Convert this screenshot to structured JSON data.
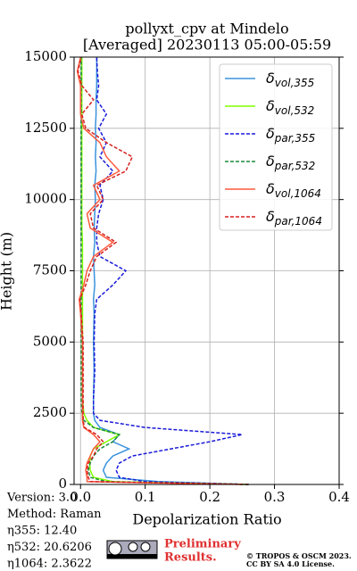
{
  "chart_data": {
    "type": "line",
    "title": [
      "pollyxt_cpv at Mindelo",
      "[Averaged] 20230113 05:00-05:59"
    ],
    "xlabel": "Depolarization Ratio",
    "ylabel": "Height (m)",
    "xlim": [
      -0.01,
      0.4
    ],
    "ylim": [
      0,
      15000
    ],
    "xticks": [
      {
        "value": 0,
        "label": "0.0"
      },
      0.1,
      0.2,
      0.3,
      0.4
    ],
    "yticks": [
      0,
      2500,
      5000,
      7500,
      10000,
      12500,
      15000
    ],
    "grid": true,
    "legend": "upper right",
    "y": [
      0,
      100,
      250,
      500,
      750,
      1000,
      1250,
      1500,
      1750,
      2000,
      2250,
      2500,
      3000,
      4000,
      5000,
      6000,
      6500,
      7000,
      7500,
      8000,
      8500,
      9000,
      9500,
      10000,
      10500,
      11000,
      11500,
      12000,
      12500,
      13000,
      13500,
      14000,
      14500,
      15000
    ],
    "series": [
      {
        "name": "δvol,355",
        "color": "#3a93dd",
        "dash": false,
        "values": [
          0.26,
          0.12,
          0.04,
          0.035,
          0.04,
          0.05,
          0.075,
          0.05,
          0.06,
          0.03,
          0.022,
          0.02,
          0.02,
          0.021,
          0.02,
          0.021,
          0.02,
          0.022,
          0.021,
          0.02,
          0.022,
          0.021,
          0.022,
          0.023,
          0.022,
          0.024,
          0.023,
          0.024,
          0.023,
          0.024,
          0.024,
          0.025,
          0.025,
          0.025
        ]
      },
      {
        "name": "δvol,532",
        "color": "#80ff00",
        "dash": false,
        "values": [
          0.26,
          0.05,
          0.02,
          0.015,
          0.014,
          0.015,
          0.02,
          0.04,
          0.06,
          0.02,
          0.01,
          0.005,
          0.003,
          0.003,
          0.003,
          0.003,
          0.003,
          0.003,
          0.003,
          0.003,
          0.003,
          0.002,
          0.002,
          0.002,
          0.002,
          0.002,
          0.002,
          0.002,
          0.002,
          0.002,
          0.002,
          0.002,
          0.002,
          0.002
        ]
      },
      {
        "name": "δpar,355",
        "color": "#1a1ad9",
        "dash": true,
        "values": [
          0.26,
          0.1,
          0.06,
          0.055,
          0.06,
          0.08,
          0.14,
          0.2,
          0.25,
          0.1,
          0.03,
          0.02,
          0.02,
          0.022,
          0.021,
          0.022,
          0.025,
          0.05,
          0.07,
          0.03,
          0.025,
          0.025,
          0.028,
          0.035,
          0.03,
          0.05,
          0.03,
          0.04,
          0.028,
          0.04,
          0.025,
          0.028,
          0.026,
          0.025
        ]
      },
      {
        "name": "δpar,532",
        "color": "#1a8a3a",
        "dash": true,
        "values": [
          0.26,
          0.04,
          0.015,
          0.012,
          0.015,
          0.02,
          0.03,
          0.05,
          0.06,
          0.02,
          0.005,
          0.002,
          0.001,
          0.001,
          0.001,
          0.001,
          0.001,
          0.001,
          0.001,
          0.001,
          0.001,
          0.001,
          0.001,
          0.001,
          0.001,
          0.001,
          0.001,
          0.001,
          0.001,
          0.001,
          0.001,
          0.001,
          0.001,
          0.001
        ]
      },
      {
        "name": "δvol,1064",
        "color": "#ff5a3c",
        "dash": false,
        "values": [
          0.25,
          0.01,
          0.01,
          0.008,
          0.01,
          0.015,
          0.02,
          0.03,
          0.02,
          0.005,
          0.003,
          0.003,
          0.003,
          0.003,
          0.003,
          0,
          -0.002,
          0.005,
          0.01,
          0.02,
          0.05,
          0.015,
          0.01,
          0.03,
          0.02,
          0.06,
          0.04,
          0.03,
          0.005,
          0,
          0,
          0,
          -0.005,
          0
        ]
      },
      {
        "name": "δpar,1064",
        "color": "#d62020",
        "dash": true,
        "values": [
          0.26,
          0.015,
          0.012,
          0.01,
          0.012,
          0.02,
          0.025,
          0.035,
          0.025,
          0.006,
          0.004,
          0.004,
          0.004,
          0.004,
          0.004,
          0.001,
          -0.001,
          0.008,
          0.015,
          0.025,
          0.055,
          0.02,
          0.015,
          0.035,
          0.025,
          0.07,
          0.08,
          0.04,
          0.008,
          0.002,
          0.02,
          0.002,
          -0.004,
          0.001
        ]
      }
    ],
    "notes": [
      "Version: 3.0",
      "Method: Raman",
      "η355:  12.40",
      "η532: 20.6206",
      "η1064: 2.3622"
    ],
    "preliminary": [
      "Preliminary",
      "Results."
    ],
    "copyright": [
      "© TROPOS & OSCM 2023.",
      "CC BY SA 4.0 License."
    ]
  }
}
